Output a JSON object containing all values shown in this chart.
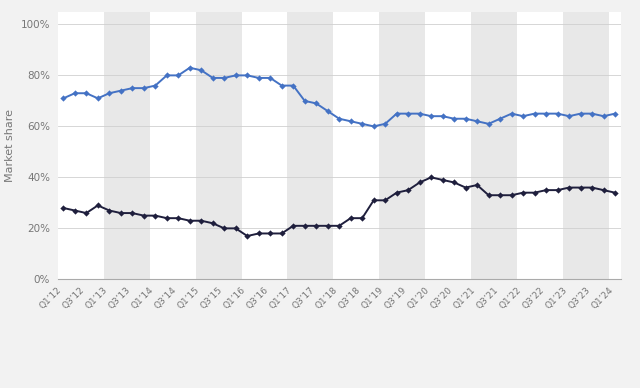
{
  "ylabel": "Market share",
  "background_color": "#f2f2f2",
  "plot_bg_color": "#ffffff",
  "stripe_color": "#e8e8e8",
  "intel_color": "#4472c4",
  "amd_color": "#1f1f3d",
  "grid_color": "#d0d0d0",
  "tick_labels": [
    "Q1’12",
    "Q3’12",
    "Q1’13",
    "Q3’13",
    "Q1’14",
    "Q3’14",
    "Q1’15",
    "Q3’15",
    "Q1’16",
    "Q3’16",
    "Q1’17",
    "Q3’17",
    "Q1’18",
    "Q3’18",
    "Q1’19",
    "Q3’19",
    "Q1’20",
    "Q3’20",
    "Q1’21",
    "Q3’21",
    "Q1’22",
    "Q3’22",
    "Q1’23",
    "Q3’23",
    "Q1’24"
  ],
  "intel_data": [
    71,
    73,
    73,
    71,
    73,
    74,
    75,
    75,
    76,
    80,
    80,
    83,
    82,
    79,
    79,
    80,
    80,
    79,
    79,
    76,
    76,
    70,
    69,
    66,
    63,
    62,
    61,
    60,
    61,
    65,
    65,
    65,
    64,
    64,
    63,
    63,
    62,
    61,
    63,
    65,
    64,
    65,
    65,
    65,
    64,
    65,
    65,
    64,
    65
  ],
  "amd_data": [
    28,
    27,
    26,
    29,
    27,
    26,
    26,
    25,
    25,
    24,
    24,
    23,
    23,
    22,
    20,
    20,
    17,
    18,
    18,
    18,
    21,
    21,
    21,
    21,
    21,
    24,
    24,
    31,
    31,
    34,
    35,
    38,
    40,
    39,
    38,
    36,
    37,
    33,
    33,
    33,
    34,
    34,
    35,
    35,
    36,
    36,
    36,
    35,
    34
  ],
  "yticks": [
    0,
    20,
    40,
    60,
    80,
    100
  ],
  "ylim": [
    0,
    105
  ],
  "n_points": 49
}
